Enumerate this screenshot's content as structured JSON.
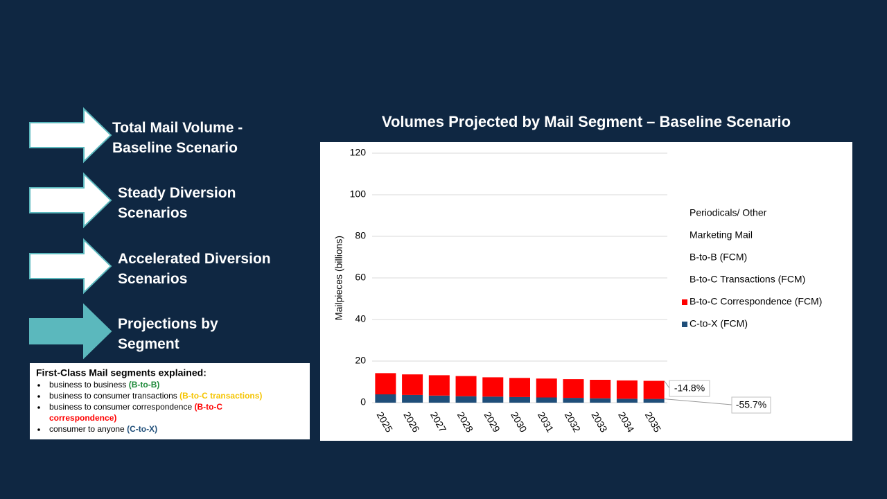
{
  "nav": [
    {
      "label": "Total Mail Volume - Baseline Scenario",
      "active": false
    },
    {
      "label": "Steady Diversion Scenarios",
      "active": false
    },
    {
      "label": "Accelerated Diversion Scenarios",
      "active": false
    },
    {
      "label": "Projections by Segment",
      "active": true
    }
  ],
  "explainer": {
    "title": "First-Class Mail segments explained:",
    "items": [
      {
        "text": "business to business ",
        "tag": "(B-to-B)",
        "color": "#1e8a3a"
      },
      {
        "text": "business to consumer transactions ",
        "tag": "(B-to-C transactions)",
        "color": "#f5c400"
      },
      {
        "text": "business to consumer correspondence ",
        "tag": "(B-to-C correspondence)",
        "color": "#ff0000"
      },
      {
        "text": "consumer to anyone ",
        "tag": "(C-to-X)",
        "color": "#1f4e79"
      }
    ]
  },
  "chart_data": {
    "type": "stacked_bar",
    "title": "Volumes Projected by Mail Segment – Baseline Scenario",
    "y_label": "Mailpieces (billions)",
    "categories": [
      "2025",
      "2026",
      "2027",
      "2028",
      "2029",
      "2030",
      "2031",
      "2032",
      "2033",
      "2034",
      "2035"
    ],
    "series": [
      {
        "name": "C-to-X (FCM)",
        "color": "#1f4e79",
        "values": [
          4.0,
          3.7,
          3.4,
          3.1,
          2.9,
          2.7,
          2.5,
          2.3,
          2.1,
          1.9,
          1.8
        ]
      },
      {
        "name": "B-to-C Correspondence (FCM)",
        "color": "#ff0000",
        "values": [
          10.2,
          9.9,
          9.8,
          9.7,
          9.3,
          9.2,
          9.1,
          9.0,
          8.9,
          8.8,
          8.7
        ]
      },
      {
        "name": "B-to-C Transactions (FCM)",
        "color": "#ffffff",
        "values": [
          null,
          null,
          null,
          null,
          null,
          null,
          null,
          null,
          null,
          null,
          null
        ]
      },
      {
        "name": "B-to-B (FCM)",
        "color": "#ffffff",
        "values": [
          null,
          null,
          null,
          null,
          null,
          null,
          null,
          null,
          null,
          null,
          null
        ]
      },
      {
        "name": "Marketing Mail",
        "color": "#ffffff",
        "values": [
          null,
          null,
          null,
          null,
          null,
          null,
          null,
          null,
          null,
          null,
          null
        ]
      },
      {
        "name": "Periodicals/ Other",
        "color": "#ffffff",
        "values": [
          null,
          null,
          null,
          null,
          null,
          null,
          null,
          null,
          null,
          null,
          null
        ]
      }
    ],
    "ylim": [
      0,
      120
    ],
    "yticks": [
      0,
      20,
      40,
      60,
      80,
      100,
      120
    ],
    "grid": true,
    "annotations": [
      "-14.8%",
      "-55.7%"
    ]
  }
}
